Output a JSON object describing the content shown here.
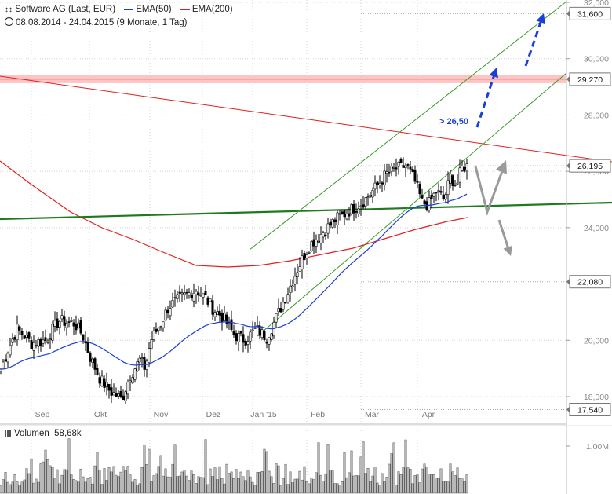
{
  "header": {
    "title": "Software AG (Last, EUR)",
    "ema50_label": "EMA(50)",
    "ema200_label": "EMA(200)",
    "range": "08.08.2014 - 24.04.2015 (9 Monate, 1 Tag)",
    "ema50_color": "#1a3fd6",
    "ema200_color": "#e02020"
  },
  "volume": {
    "label": "Volumen",
    "value": "58,68k",
    "axis_label": "1,00M"
  },
  "chart_data": {
    "type": "candlestick",
    "x_labels": [
      "Sep",
      "Okt",
      "Nov",
      "Dez",
      "Jan '15",
      "Feb",
      "Mär",
      "Apr"
    ],
    "y_ticks": [
      "18,000",
      "20,000",
      "22,000",
      "24,000",
      "26,000",
      "28,000",
      "30,000",
      "32,000"
    ],
    "y_range": [
      17.3,
      32.2
    ],
    "price_tags": [
      {
        "label": "31,600",
        "value": 31.6,
        "style": "box"
      },
      {
        "label": "29,270",
        "value": 29.27,
        "style": "box"
      },
      {
        "label": "26,195",
        "value": 26.195,
        "style": "box"
      },
      {
        "label": "22,080",
        "value": 22.08,
        "style": "box"
      },
      {
        "label": "17,540",
        "value": 17.54,
        "style": "box"
      }
    ],
    "annotation": "> 26,50",
    "colors": {
      "up_candle": "#ffffff",
      "down_candle": "#000000",
      "trend_channel": "#3a9a2a",
      "support_line": "#1e7a1e",
      "resistance_zone": "#ffb8b8",
      "bull_arrow": "#1a3fd6",
      "scenario_arrow": "#9a9a9a",
      "volume_bar": "#bdbdbd",
      "grid": "#d4d4d4"
    },
    "grid": true
  }
}
